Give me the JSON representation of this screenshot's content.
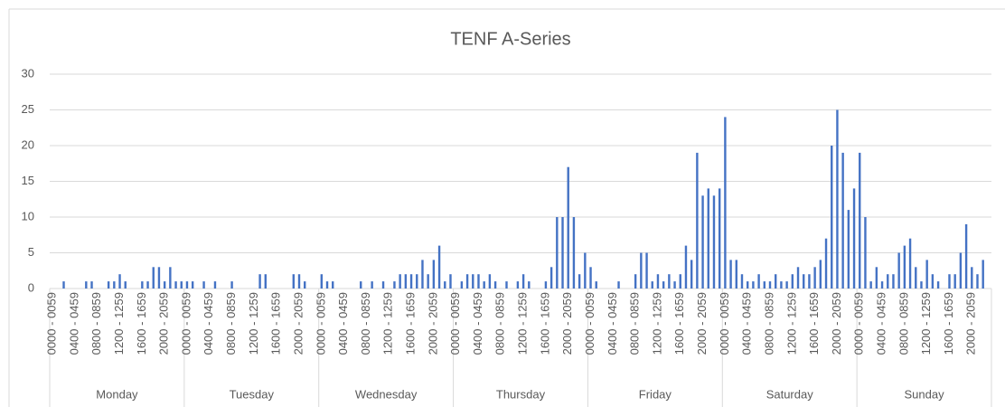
{
  "chart_data": {
    "type": "bar",
    "title": "TENF A-Series",
    "categories": [
      "0000 - 0059",
      null,
      null,
      null,
      "0400 - 0459",
      null,
      null,
      null,
      "0800 - 0859",
      null,
      null,
      null,
      "1200 - 1259",
      null,
      null,
      null,
      "1600 - 1659",
      null,
      null,
      null,
      "2000 - 2059",
      null,
      null,
      null,
      "0000 - 0059",
      null,
      null,
      null,
      "0400 - 0459",
      null,
      null,
      null,
      "0800 - 0859",
      null,
      null,
      null,
      "1200 - 1259",
      null,
      null,
      null,
      "1600 - 1659",
      null,
      null,
      null,
      "2000 - 2059",
      null,
      null,
      null,
      "0000 - 0059",
      null,
      null,
      null,
      "0400 - 0459",
      null,
      null,
      null,
      "0800 - 0859",
      null,
      null,
      null,
      "1200 - 1259",
      null,
      null,
      null,
      "1600 - 1659",
      null,
      null,
      null,
      "2000 - 2059",
      null,
      null,
      null,
      "0000 - 0059",
      null,
      null,
      null,
      "0400 - 0459",
      null,
      null,
      null,
      "0800 - 0859",
      null,
      null,
      null,
      "1200 - 1259",
      null,
      null,
      null,
      "1600 - 1659",
      null,
      null,
      null,
      "2000 - 2059",
      null,
      null,
      null,
      "0000 - 0059",
      null,
      null,
      null,
      "0400 - 0459",
      null,
      null,
      null,
      "0800 - 0859",
      null,
      null,
      null,
      "1200 - 1259",
      null,
      null,
      null,
      "1600 - 1659",
      null,
      null,
      null,
      "2000 - 2059",
      null,
      null,
      null,
      "0000 - 0059",
      null,
      null,
      null,
      "0400 - 0459",
      null,
      null,
      null,
      "0800 - 0859",
      null,
      null,
      null,
      "1200 - 1259",
      null,
      null,
      null,
      "1600 - 1659",
      null,
      null,
      null,
      "2000 - 2059",
      null,
      null,
      null,
      "0000 - 0059",
      null,
      null,
      null,
      "0400 - 0459",
      null,
      null,
      null,
      "0800 - 0859",
      null,
      null,
      null,
      "1200 - 1259",
      null,
      null,
      null,
      "1600 - 1659",
      null,
      null,
      null,
      "2000 - 2059",
      null,
      null,
      null
    ],
    "groups": [
      "Monday",
      "Tuesday",
      "Wednesday",
      "Thursday",
      "Friday",
      "Saturday",
      "Sunday"
    ],
    "values": [
      0,
      0,
      1,
      0,
      0,
      0,
      1,
      1,
      0,
      0,
      1,
      1,
      2,
      1,
      0,
      0,
      1,
      1,
      3,
      3,
      1,
      3,
      1,
      1,
      1,
      1,
      0,
      1,
      0,
      1,
      0,
      0,
      1,
      0,
      0,
      0,
      0,
      2,
      2,
      0,
      0,
      0,
      0,
      2,
      2,
      1,
      0,
      0,
      2,
      1,
      1,
      0,
      0,
      0,
      0,
      1,
      0,
      1,
      0,
      1,
      0,
      1,
      2,
      2,
      2,
      2,
      4,
      2,
      4,
      6,
      1,
      2,
      0,
      1,
      2,
      2,
      2,
      1,
      2,
      1,
      0,
      1,
      0,
      1,
      2,
      1,
      0,
      0,
      1,
      3,
      10,
      10,
      17,
      10,
      2,
      5,
      3,
      1,
      0,
      0,
      0,
      1,
      0,
      0,
      2,
      5,
      5,
      1,
      2,
      1,
      2,
      1,
      2,
      6,
      4,
      19,
      13,
      14,
      13,
      14,
      24,
      4,
      4,
      2,
      1,
      1,
      2,
      1,
      1,
      2,
      1,
      1,
      2,
      3,
      2,
      2,
      3,
      4,
      7,
      20,
      25,
      19,
      11,
      14,
      19,
      10,
      1,
      3,
      1,
      2,
      2,
      5,
      6,
      7,
      3,
      1,
      4,
      2,
      1,
      0,
      2,
      2,
      5,
      9,
      3,
      2,
      4,
      0
    ],
    "color": "#4472c4",
    "ylim": [
      0,
      30
    ],
    "yticks": [
      0,
      5,
      10,
      15,
      20,
      25,
      30
    ],
    "grid": true
  }
}
